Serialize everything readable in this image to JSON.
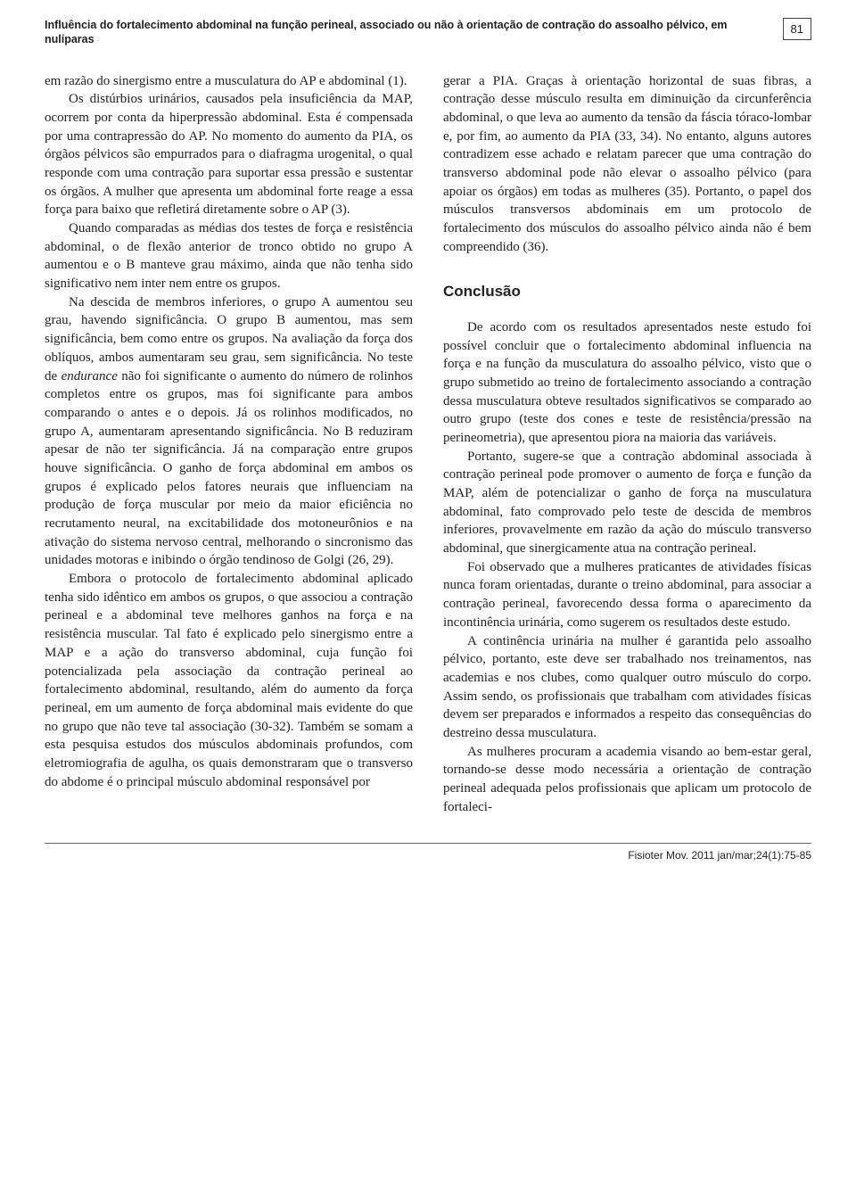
{
  "header": {
    "running_title": "Influência do fortalecimento abdominal na função perineal, associado ou não à orientação de contração do assoalho pélvico, em nulíparas",
    "page_number": "81"
  },
  "left_column": {
    "p1": "em razão do sinergismo entre a musculatura do AP e abdominal (1).",
    "p2": "Os distúrbios urinários, causados pela insuficiência da MAP, ocorrem por conta da hiperpressão abdominal. Esta é compensada por uma contrapressão do AP. No momento do aumento da PIA, os órgãos pélvicos são empurrados para o diafragma urogenital, o qual responde com uma contração para suportar essa pressão e sustentar os órgãos. A mulher que apresenta um abdominal forte reage a essa força para baixo que refletirá diretamente sobre o AP (3).",
    "p3": "Quando comparadas as médias dos testes de força e resistência abdominal, o de flexão anterior de tronco obtido no grupo A aumentou e o B manteve grau máximo, ainda que não tenha sido significativo nem inter nem entre os grupos.",
    "p4a": "Na descida de membros inferiores, o grupo A aumentou seu grau, havendo significância. O grupo B aumentou, mas sem significância, bem como entre os grupos. Na avaliação da força dos oblíquos, ambos aumentaram seu grau, sem significância. No teste de ",
    "p4e": "endurance",
    "p4b": " não foi significante o aumento do número de rolinhos completos entre os grupos, mas foi significante para ambos comparando o antes e o depois. Já os rolinhos modificados, no grupo A, aumentaram apresentando significância. No B reduziram apesar de não ter significância. Já na comparação entre grupos houve significância. O ganho de força abdominal em ambos os grupos é explicado pelos fatores neurais que influenciam na produção de força muscular por meio da maior eficiência no recrutamento neural, na excitabilidade dos motoneurônios e na ativação do sistema nervoso central, melhorando o sincronismo das unidades motoras e inibindo o órgão tendinoso de Golgi (26, 29).",
    "p5": "Embora o protocolo de fortalecimento abdominal aplicado tenha sido idêntico em ambos os grupos, o que associou a contração perineal e a abdominal teve melhores ganhos na força e na resistência muscular. Tal fato é explicado pelo sinergismo entre a MAP e a ação do transverso abdominal, cuja função foi potencializada pela associação da contração perineal ao fortalecimento abdominal, resultando, além do aumento da força perineal, em um aumento de força abdominal mais evidente do que no grupo que não teve tal associação (30-32). Também se somam a esta pesquisa estudos dos músculos abdominais profundos, com eletromiografia de agulha, os quais demonstraram que o transverso do abdome é o principal músculo abdominal responsável por"
  },
  "right_column": {
    "p1": "gerar a PIA. Graças à orientação horizontal de suas fibras, a contração desse músculo resulta em diminuição da circunferência abdominal, o que leva ao aumento da tensão da fáscia tóraco-lombar e, por fim, ao aumento da PIA (33, 34). No entanto, alguns autores contradizem esse achado e relatam parecer que uma contração do transverso abdominal pode não elevar o assoalho pélvico (para apoiar os órgãos) em todas as mulheres (35). Portanto, o papel dos músculos transversos abdominais em um protocolo de fortalecimento dos músculos do assoalho pélvico ainda não é bem compreendido (36).",
    "heading": "Conclusão",
    "p2": "De acordo com os resultados apresentados neste estudo foi possível concluir que o fortalecimento abdominal influencia na força e na função da musculatura do assoalho pélvico, visto que o grupo submetido ao treino de fortalecimento associando a contração dessa musculatura obteve resultados significativos se comparado ao outro grupo (teste dos cones e teste de resistência/pressão na perineometria), que apresentou piora na maioria das variáveis.",
    "p3": "Portanto, sugere-se que a contração abdominal associada à contração perineal pode promover o aumento de força e função da MAP, além de potencializar o ganho de força na musculatura abdominal, fato comprovado pelo teste de descida de membros inferiores, provavelmente em razão da ação do músculo transverso abdominal, que sinergicamente atua na contração perineal.",
    "p4": "Foi observado que a mulheres praticantes de atividades físicas nunca foram orientadas, durante o treino abdominal, para associar a contração perineal, favorecendo dessa forma o aparecimento da incontinência urinária, como sugerem os resultados deste estudo.",
    "p5": "A continência urinária na mulher é garantida pelo assoalho pélvico, portanto, este deve ser trabalhado nos treinamentos, nas academias e nos clubes, como qualquer outro músculo do corpo. Assim sendo, os profissionais que trabalham com atividades físicas devem ser preparados e informados a respeito das consequências do destreino dessa musculatura.",
    "p6": "As mulheres procuram a academia visando ao bem-estar geral, tornando-se desse modo necessária a orientação de contração perineal adequada pelos profissionais que aplicam um protocolo de fortaleci-"
  },
  "footer": {
    "citation": "Fisioter Mov. 2011 jan/mar;24(1):75-85"
  }
}
